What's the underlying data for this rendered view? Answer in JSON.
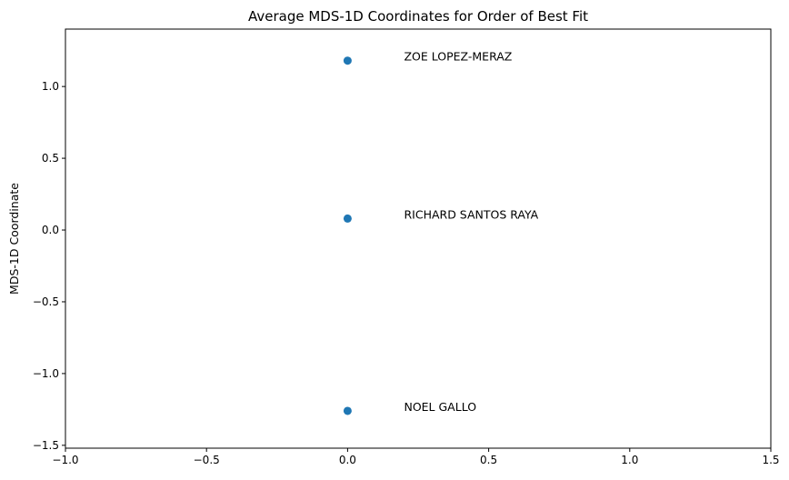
{
  "chart_data": {
    "type": "scatter",
    "title": "Average MDS-1D Coordinates for Order of Best Fit",
    "xlabel": "",
    "ylabel": "MDS-1D Coordinate",
    "xlim": [
      -1.0,
      1.5
    ],
    "ylim": [
      -1.52,
      1.4
    ],
    "xticks": [
      -1.0,
      -0.5,
      0.0,
      0.5,
      1.0,
      1.5
    ],
    "xtick_labels": [
      "−1.0",
      "−0.5",
      "0.0",
      "0.5",
      "1.0",
      "1.5"
    ],
    "yticks": [
      -1.5,
      -1.0,
      -0.5,
      0.0,
      0.5,
      1.0
    ],
    "ytick_labels": [
      "−1.5",
      "−1.0",
      "−0.5",
      "0.0",
      "0.5",
      "1.0"
    ],
    "grid": false,
    "marker_color": "#1f77b4",
    "points": [
      {
        "label": "ZOE LOPEZ-MERAZ",
        "x": 0.0,
        "y": 1.18,
        "label_x": 0.2
      },
      {
        "label": "RICHARD SANTOS RAYA",
        "x": 0.0,
        "y": 0.08,
        "label_x": 0.2
      },
      {
        "label": "NOEL GALLO",
        "x": 0.0,
        "y": -1.26,
        "label_x": 0.2
      }
    ]
  }
}
